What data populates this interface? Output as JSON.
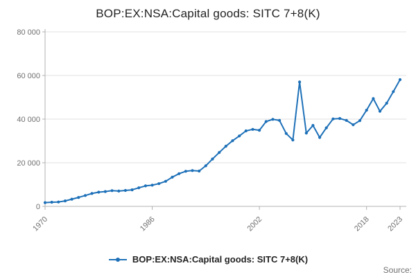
{
  "chart_data": {
    "type": "line",
    "title": "BOP:EX:NSA:Capital goods: SITC 7+8(K)",
    "legend": "BOP:EX:NSA:Capital goods: SITC 7+8(K)",
    "legend_position": "bottom",
    "grid": "horizontal",
    "xlabel": "",
    "ylabel": "",
    "ylim": [
      0,
      80000
    ],
    "yticks": [
      {
        "value": 0,
        "label": "0"
      },
      {
        "value": 20000,
        "label": "20 000"
      },
      {
        "value": 40000,
        "label": "40 000"
      },
      {
        "value": 60000,
        "label": "60 000"
      },
      {
        "value": 80000,
        "label": "80 000"
      }
    ],
    "xticks": [
      1970,
      1986,
      2002,
      2018,
      2023
    ],
    "x": [
      1970,
      1971,
      1972,
      1973,
      1974,
      1975,
      1976,
      1977,
      1978,
      1979,
      1980,
      1981,
      1982,
      1983,
      1984,
      1985,
      1986,
      1987,
      1988,
      1989,
      1990,
      1991,
      1992,
      1993,
      1994,
      1995,
      1996,
      1997,
      1998,
      1999,
      2000,
      2001,
      2002,
      2003,
      2004,
      2005,
      2006,
      2007,
      2008,
      2009,
      2010,
      2011,
      2012,
      2013,
      2014,
      2015,
      2016,
      2017,
      2018,
      2019,
      2020,
      2021,
      2022,
      2023
    ],
    "series": [
      {
        "name": "BOP:EX:NSA:Capital goods: SITC 7+8(K)",
        "values": [
          1700,
          1900,
          2000,
          2500,
          3300,
          4100,
          5000,
          5900,
          6500,
          6800,
          7200,
          7000,
          7300,
          7600,
          8500,
          9400,
          9700,
          10400,
          11500,
          13400,
          15000,
          16100,
          16400,
          16200,
          18600,
          21700,
          24700,
          27600,
          30100,
          32300,
          34600,
          35300,
          34900,
          38900,
          39900,
          39400,
          33400,
          30400,
          57000,
          33600,
          37100,
          31600,
          36000,
          40100,
          40300,
          39400,
          37400,
          39300,
          44100,
          49400,
          43600,
          47300,
          52600,
          58100
        ]
      }
    ]
  },
  "footer": {
    "source": "Source:"
  },
  "colors": {
    "line": "#1d70b8",
    "grid": "#e2e2e2",
    "axis": "#b0b0b0",
    "tick_text": "#6f6f6f",
    "title_text": "#222222"
  }
}
